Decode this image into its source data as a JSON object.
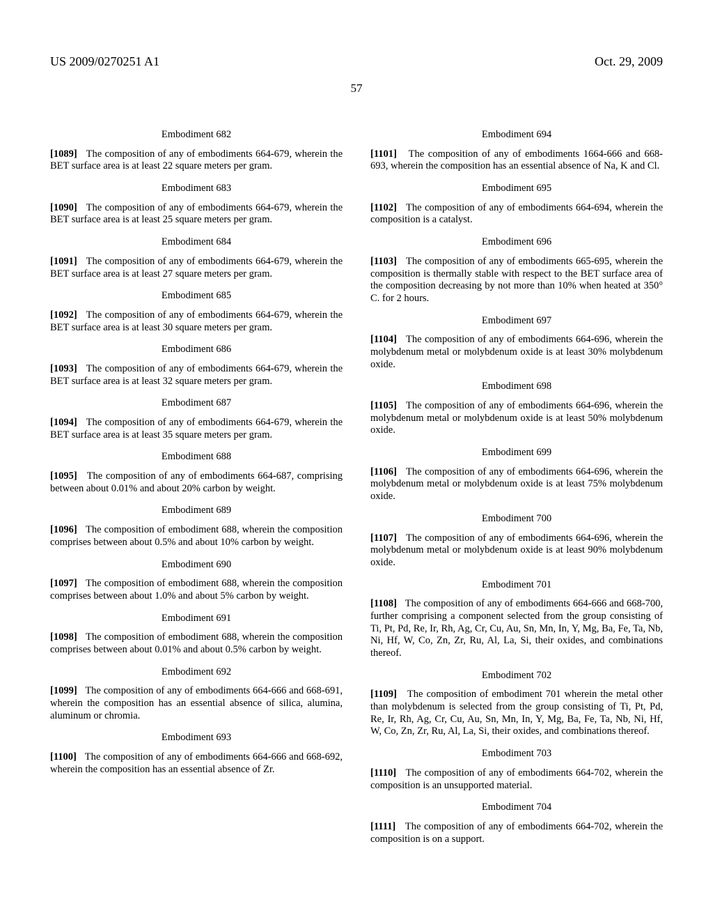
{
  "header": {
    "left": "US 2009/0270251 A1",
    "right": "Oct. 29, 2009"
  },
  "page_number": "57",
  "left_column": [
    {
      "title": "Embodiment 682",
      "num": "[1089]",
      "text": "The composition of any of embodiments 664-679, wherein the BET surface area is at least 22 square meters per gram."
    },
    {
      "title": "Embodiment 683",
      "num": "[1090]",
      "text": "The composition of any of embodiments 664-679, wherein the BET surface area is at least 25 square meters per gram."
    },
    {
      "title": "Embodiment 684",
      "num": "[1091]",
      "text": "The composition of any of embodiments 664-679, wherein the BET surface area is at least 27 square meters per gram."
    },
    {
      "title": "Embodiment 685",
      "num": "[1092]",
      "text": "The composition of any of embodiments 664-679, wherein the BET surface area is at least 30 square meters per gram."
    },
    {
      "title": "Embodiment 686",
      "num": "[1093]",
      "text": "The composition of any of embodiments 664-679, wherein the BET surface area is at least 32 square meters per gram."
    },
    {
      "title": "Embodiment 687",
      "num": "[1094]",
      "text": "The composition of any of embodiments 664-679, wherein the BET surface area is at least 35 square meters per gram."
    },
    {
      "title": "Embodiment 688",
      "num": "[1095]",
      "text": "The composition of any of embodiments 664-687, comprising between about 0.01% and about 20% carbon by weight."
    },
    {
      "title": "Embodiment 689",
      "num": "[1096]",
      "text": "The composition of embodiment 688, wherein the composition comprises between about 0.5% and about 10% carbon by weight."
    },
    {
      "title": "Embodiment 690",
      "num": "[1097]",
      "text": "The composition of embodiment 688, wherein the composition comprises between about 1.0% and about 5% carbon by weight."
    },
    {
      "title": "Embodiment 691",
      "num": "[1098]",
      "text": "The composition of embodiment 688, wherein the composition comprises between about 0.01% and about 0.5% carbon by weight."
    },
    {
      "title": "Embodiment 692",
      "num": "[1099]",
      "text": "The composition of any of embodiments 664-666 and 668-691, wherein the composition has an essential absence of silica, alumina, aluminum or chromia."
    },
    {
      "title": "Embodiment 693",
      "num": "[1100]",
      "text": "The composition of any of embodiments 664-666 and 668-692, wherein the composition has an essential absence of Zr."
    }
  ],
  "right_column": [
    {
      "title": "Embodiment 694",
      "num": "[1101]",
      "text": "The composition of any of embodiments 1664-666 and 668-693, wherein the composition has an essential absence of Na, K and Cl."
    },
    {
      "title": "Embodiment 695",
      "num": "[1102]",
      "text": "The composition of any of embodiments 664-694, wherein the composition is a catalyst."
    },
    {
      "title": "Embodiment 696",
      "num": "[1103]",
      "text": "The composition of any of embodiments 665-695, wherein the composition is thermally stable with respect to the BET surface area of the composition decreasing by not more than 10% when heated at 350° C. for 2 hours."
    },
    {
      "title": "Embodiment 697",
      "num": "[1104]",
      "text": "The composition of any of embodiments 664-696, wherein the molybdenum metal or molybdenum oxide is at least 30% molybdenum oxide."
    },
    {
      "title": "Embodiment 698",
      "num": "[1105]",
      "text": "The composition of any of embodiments 664-696, wherein the molybdenum metal or molybdenum oxide is at least 50% molybdenum oxide."
    },
    {
      "title": "Embodiment 699",
      "num": "[1106]",
      "text": "The composition of any of embodiments 664-696, wherein the molybdenum metal or molybdenum oxide is at least 75% molybdenum oxide."
    },
    {
      "title": "Embodiment 700",
      "num": "[1107]",
      "text": "The composition of any of embodiments 664-696, wherein the molybdenum metal or molybdenum oxide is at least 90% molybdenum oxide."
    },
    {
      "title": "Embodiment 701",
      "num": "[1108]",
      "text": "The composition of any of embodiments 664-666 and 668-700, further comprising a component selected from the group consisting of Ti, Pt, Pd, Re, Ir, Rh, Ag, Cr, Cu, Au, Sn, Mn, In, Y, Mg, Ba, Fe, Ta, Nb, Ni, Hf, W, Co, Zn, Zr, Ru, Al, La, Si, their oxides, and combinations thereof."
    },
    {
      "title": "Embodiment 702",
      "num": "[1109]",
      "text": "The composition of embodiment 701 wherein the metal other than molybdenum is selected from the group consisting of Ti, Pt, Pd, Re, Ir, Rh, Ag, Cr, Cu, Au, Sn, Mn, In, Y, Mg, Ba, Fe, Ta, Nb, Ni, Hf, W, Co, Zn, Zr, Ru, Al, La, Si, their oxides, and combinations thereof."
    },
    {
      "title": "Embodiment 703",
      "num": "[1110]",
      "text": "The composition of any of embodiments 664-702, wherein the composition is an unsupported material."
    },
    {
      "title": "Embodiment 704",
      "num": "[1111]",
      "text": "The composition of any of embodiments 664-702, wherein the composition is on a support."
    }
  ]
}
